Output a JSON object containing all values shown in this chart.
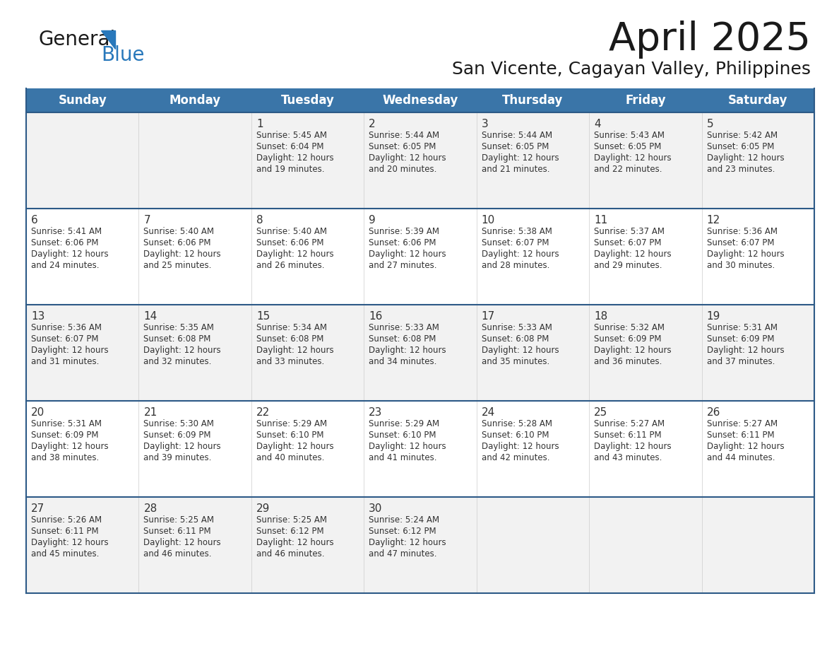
{
  "title": "April 2025",
  "subtitle": "San Vicente, Cagayan Valley, Philippines",
  "days_of_week": [
    "Sunday",
    "Monday",
    "Tuesday",
    "Wednesday",
    "Thursday",
    "Friday",
    "Saturday"
  ],
  "header_bg": "#3A75A8",
  "header_text": "#FFFFFF",
  "row_bg": "#F2F2F2",
  "row_bg_alt": "#FFFFFF",
  "cell_border_color": "#2D5A87",
  "cell_border_thin": "#CCCCCC",
  "text_color": "#333333",
  "title_color": "#1A1A1A",
  "logo_general_color": "#1A1A1A",
  "logo_blue_color": "#2878BB",
  "calendar_data": [
    [
      {
        "day": "",
        "sunrise": "",
        "sunset": "",
        "daylight": ""
      },
      {
        "day": "",
        "sunrise": "",
        "sunset": "",
        "daylight": ""
      },
      {
        "day": "1",
        "sunrise": "5:45 AM",
        "sunset": "6:04 PM",
        "daylight": "12 hours and 19 minutes."
      },
      {
        "day": "2",
        "sunrise": "5:44 AM",
        "sunset": "6:05 PM",
        "daylight": "12 hours and 20 minutes."
      },
      {
        "day": "3",
        "sunrise": "5:44 AM",
        "sunset": "6:05 PM",
        "daylight": "12 hours and 21 minutes."
      },
      {
        "day": "4",
        "sunrise": "5:43 AM",
        "sunset": "6:05 PM",
        "daylight": "12 hours and 22 minutes."
      },
      {
        "day": "5",
        "sunrise": "5:42 AM",
        "sunset": "6:05 PM",
        "daylight": "12 hours and 23 minutes."
      }
    ],
    [
      {
        "day": "6",
        "sunrise": "5:41 AM",
        "sunset": "6:06 PM",
        "daylight": "12 hours and 24 minutes."
      },
      {
        "day": "7",
        "sunrise": "5:40 AM",
        "sunset": "6:06 PM",
        "daylight": "12 hours and 25 minutes."
      },
      {
        "day": "8",
        "sunrise": "5:40 AM",
        "sunset": "6:06 PM",
        "daylight": "12 hours and 26 minutes."
      },
      {
        "day": "9",
        "sunrise": "5:39 AM",
        "sunset": "6:06 PM",
        "daylight": "12 hours and 27 minutes."
      },
      {
        "day": "10",
        "sunrise": "5:38 AM",
        "sunset": "6:07 PM",
        "daylight": "12 hours and 28 minutes."
      },
      {
        "day": "11",
        "sunrise": "5:37 AM",
        "sunset": "6:07 PM",
        "daylight": "12 hours and 29 minutes."
      },
      {
        "day": "12",
        "sunrise": "5:36 AM",
        "sunset": "6:07 PM",
        "daylight": "12 hours and 30 minutes."
      }
    ],
    [
      {
        "day": "13",
        "sunrise": "5:36 AM",
        "sunset": "6:07 PM",
        "daylight": "12 hours and 31 minutes."
      },
      {
        "day": "14",
        "sunrise": "5:35 AM",
        "sunset": "6:08 PM",
        "daylight": "12 hours and 32 minutes."
      },
      {
        "day": "15",
        "sunrise": "5:34 AM",
        "sunset": "6:08 PM",
        "daylight": "12 hours and 33 minutes."
      },
      {
        "day": "16",
        "sunrise": "5:33 AM",
        "sunset": "6:08 PM",
        "daylight": "12 hours and 34 minutes."
      },
      {
        "day": "17",
        "sunrise": "5:33 AM",
        "sunset": "6:08 PM",
        "daylight": "12 hours and 35 minutes."
      },
      {
        "day": "18",
        "sunrise": "5:32 AM",
        "sunset": "6:09 PM",
        "daylight": "12 hours and 36 minutes."
      },
      {
        "day": "19",
        "sunrise": "5:31 AM",
        "sunset": "6:09 PM",
        "daylight": "12 hours and 37 minutes."
      }
    ],
    [
      {
        "day": "20",
        "sunrise": "5:31 AM",
        "sunset": "6:09 PM",
        "daylight": "12 hours and 38 minutes."
      },
      {
        "day": "21",
        "sunrise": "5:30 AM",
        "sunset": "6:09 PM",
        "daylight": "12 hours and 39 minutes."
      },
      {
        "day": "22",
        "sunrise": "5:29 AM",
        "sunset": "6:10 PM",
        "daylight": "12 hours and 40 minutes."
      },
      {
        "day": "23",
        "sunrise": "5:29 AM",
        "sunset": "6:10 PM",
        "daylight": "12 hours and 41 minutes."
      },
      {
        "day": "24",
        "sunrise": "5:28 AM",
        "sunset": "6:10 PM",
        "daylight": "12 hours and 42 minutes."
      },
      {
        "day": "25",
        "sunrise": "5:27 AM",
        "sunset": "6:11 PM",
        "daylight": "12 hours and 43 minutes."
      },
      {
        "day": "26",
        "sunrise": "5:27 AM",
        "sunset": "6:11 PM",
        "daylight": "12 hours and 44 minutes."
      }
    ],
    [
      {
        "day": "27",
        "sunrise": "5:26 AM",
        "sunset": "6:11 PM",
        "daylight": "12 hours and 45 minutes."
      },
      {
        "day": "28",
        "sunrise": "5:25 AM",
        "sunset": "6:11 PM",
        "daylight": "12 hours and 46 minutes."
      },
      {
        "day": "29",
        "sunrise": "5:25 AM",
        "sunset": "6:12 PM",
        "daylight": "12 hours and 46 minutes."
      },
      {
        "day": "30",
        "sunrise": "5:24 AM",
        "sunset": "6:12 PM",
        "daylight": "12 hours and 47 minutes."
      },
      {
        "day": "",
        "sunrise": "",
        "sunset": "",
        "daylight": ""
      },
      {
        "day": "",
        "sunrise": "",
        "sunset": "",
        "daylight": ""
      },
      {
        "day": "",
        "sunrise": "",
        "sunset": "",
        "daylight": ""
      }
    ]
  ]
}
